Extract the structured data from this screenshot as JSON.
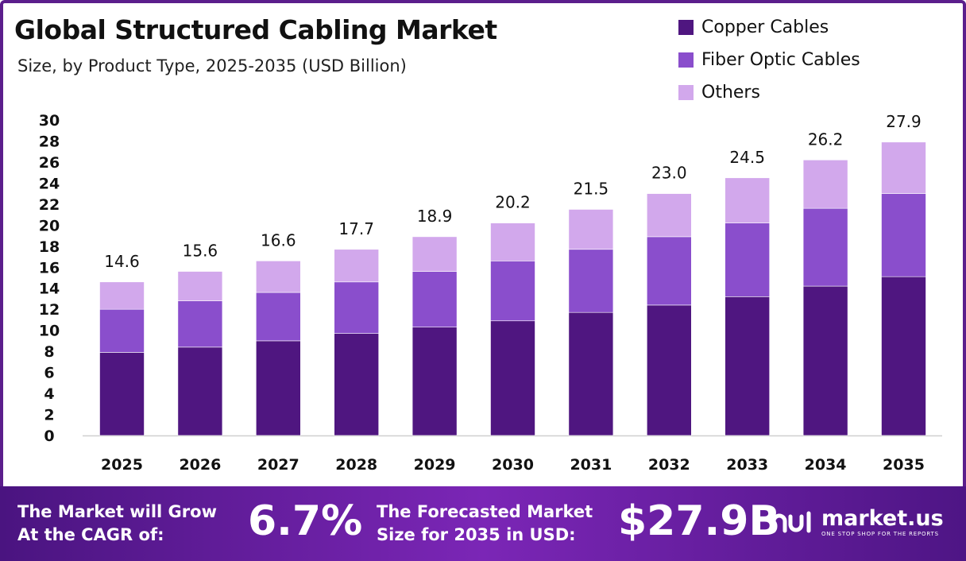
{
  "header": {
    "title": "Global Structured Cabling Market",
    "subtitle": "Size, by Product Type, 2025-2035 (USD Billion)"
  },
  "colors": {
    "copper": "#4f1680",
    "fiber": "#8a4ecc",
    "others": "#d2a8ec",
    "footer_start": "#4a1480",
    "footer_mid": "#7b26b6"
  },
  "chart_data": {
    "type": "bar",
    "stacked": true,
    "title": "Global Structured Cabling Market",
    "subtitle": "Size, by Product Type, 2025-2035 (USD Billion)",
    "categories": [
      "2025",
      "2026",
      "2027",
      "2028",
      "2029",
      "2030",
      "2031",
      "2032",
      "2033",
      "2034",
      "2035"
    ],
    "series": [
      {
        "name": "Copper Cables",
        "color": "#4f1680",
        "values": [
          7.9,
          8.4,
          9.0,
          9.7,
          10.3,
          10.9,
          11.7,
          12.4,
          13.2,
          14.2,
          15.1
        ]
      },
      {
        "name": "Fiber Optic Cables",
        "color": "#8a4ecc",
        "values": [
          4.1,
          4.4,
          4.6,
          4.9,
          5.3,
          5.7,
          6.0,
          6.5,
          7.0,
          7.4,
          7.9
        ]
      },
      {
        "name": "Others",
        "color": "#d2a8ec",
        "values": [
          2.6,
          2.8,
          3.0,
          3.1,
          3.3,
          3.6,
          3.8,
          4.1,
          4.3,
          4.6,
          4.9
        ]
      }
    ],
    "totals": [
      "14.6",
      "15.6",
      "16.6",
      "17.7",
      "18.9",
      "20.2",
      "21.5",
      "23.0",
      "24.5",
      "26.2",
      "27.9"
    ],
    "y_ticks": [
      "0",
      "2",
      "4",
      "6",
      "8",
      "10",
      "12",
      "14",
      "16",
      "18",
      "20",
      "22",
      "24",
      "26",
      "28",
      "30"
    ],
    "ylim": [
      0,
      30
    ],
    "xlabel": "",
    "ylabel": "",
    "grid": false,
    "legend_position": "top-right"
  },
  "footer": {
    "cagr_label": "The Market will Grow At the CAGR of:",
    "cagr_value": "6.7%",
    "size_label": "The Forecasted Market Size for 2035 in USD:",
    "size_value": "$27.9B",
    "brand_name": "market.us",
    "brand_tagline": "ONE STOP SHOP FOR THE REPORTS"
  }
}
